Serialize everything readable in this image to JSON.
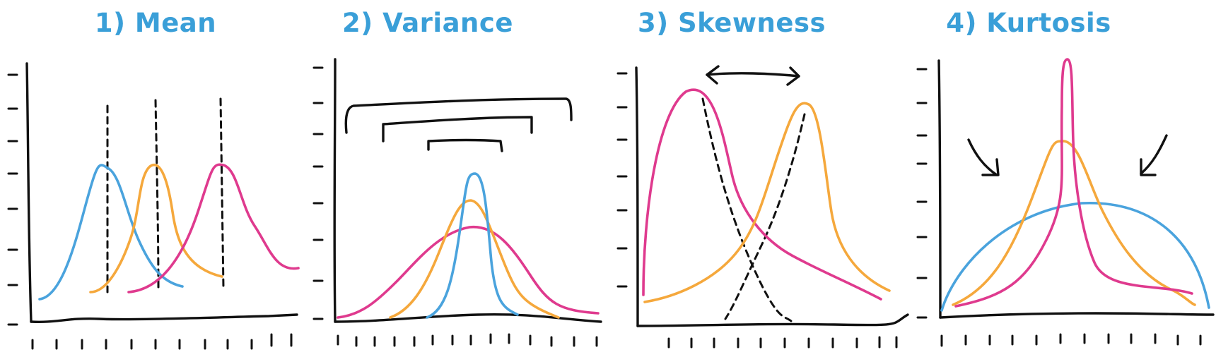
{
  "panels": [
    {
      "title": "1) Mean"
    },
    {
      "title": "2) Variance"
    },
    {
      "title": "3) Skewness"
    },
    {
      "title": "4) Kurtosis"
    }
  ],
  "colors": {
    "title": "#3a9fd8",
    "blue": "#4aa3dd",
    "orange": "#f5a83c",
    "magenta": "#df3a8e",
    "ink": "#111111"
  }
}
